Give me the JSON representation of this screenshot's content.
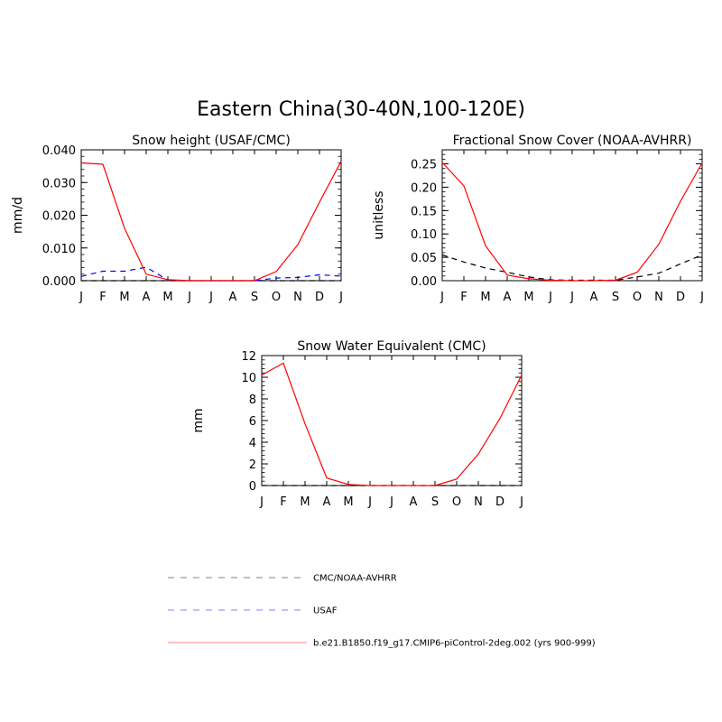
{
  "figure": {
    "title": "Eastern China(30-40N,100-120E)"
  },
  "months": [
    "J",
    "F",
    "M",
    "A",
    "M",
    "J",
    "J",
    "A",
    "S",
    "O",
    "N",
    "D",
    "J"
  ],
  "legend": [
    {
      "label": "CMC/NOAA-AVHRR",
      "color": "#000000",
      "style": "dashed"
    },
    {
      "label": "USAF",
      "color": "#0000ff",
      "style": "dashed"
    },
    {
      "label": "b.e21.B1850.f19_g17.CMIP6-piControl-2deg.002 (yrs 900-999)",
      "color": "#ff0000",
      "style": "solid"
    }
  ],
  "chart_data": [
    {
      "type": "line",
      "title": "Snow height (USAF/CMC)",
      "xlabel": "",
      "ylabel": "mm/d",
      "ylim": [
        0,
        0.04
      ],
      "yticks": [
        "0.000",
        "0.010",
        "0.020",
        "0.030",
        "0.040"
      ],
      "x": [
        "J",
        "F",
        "M",
        "A",
        "M",
        "J",
        "J",
        "A",
        "S",
        "O",
        "N",
        "D",
        "J"
      ],
      "series": [
        {
          "name": "CMC/NOAA-AVHRR",
          "color": "#000000",
          "dash": true,
          "values": [
            0,
            0,
            0,
            0,
            0,
            0,
            0,
            0,
            0,
            0,
            0,
            0,
            0
          ]
        },
        {
          "name": "USAF",
          "color": "#0000ff",
          "dash": true,
          "values": [
            0.0013,
            0.0029,
            0.0029,
            0.0041,
            0.0002,
            0,
            0,
            0,
            0,
            0.0008,
            0.001,
            0.0018,
            0.0014
          ]
        },
        {
          "name": "b.e21.B1850.f19_g17.CMIP6-piControl-2deg.002 (yrs 900-999)",
          "color": "#ff0000",
          "dash": false,
          "values": [
            0.036,
            0.0356,
            0.016,
            0.002,
            0.0003,
            0,
            0,
            0,
            0,
            0.0028,
            0.011,
            0.024,
            0.0365
          ]
        }
      ]
    },
    {
      "type": "line",
      "title": "Fractional Snow Cover (NOAA-AVHRR)",
      "xlabel": "",
      "ylabel": "unitless",
      "ylim": [
        0,
        0.28
      ],
      "yticks": [
        "0.00",
        "0.05",
        "0.10",
        "0.15",
        "0.20",
        "0.25"
      ],
      "x": [
        "J",
        "F",
        "M",
        "A",
        "M",
        "J",
        "J",
        "A",
        "S",
        "O",
        "N",
        "D",
        "J"
      ],
      "series": [
        {
          "name": "CMC/NOAA-AVHRR",
          "color": "#000000",
          "dash": true,
          "values": [
            0.055,
            0.04,
            0.027,
            0.018,
            0.008,
            0.002,
            0.001,
            0.001,
            0.001,
            0.008,
            0.016,
            0.036,
            0.055
          ]
        },
        {
          "name": "b.e21.B1850.f19_g17.CMIP6-piControl-2deg.002 (yrs 900-999)",
          "color": "#ff0000",
          "dash": false,
          "values": [
            0.253,
            0.203,
            0.075,
            0.012,
            0.004,
            0.001,
            0,
            0,
            0.001,
            0.018,
            0.078,
            0.17,
            0.252
          ]
        }
      ]
    },
    {
      "type": "line",
      "title": "Snow Water Equivalent (CMC)",
      "xlabel": "",
      "ylabel": "mm",
      "ylim": [
        0,
        12
      ],
      "yticks": [
        "0",
        "2",
        "4",
        "6",
        "8",
        "10",
        "12"
      ],
      "x": [
        "J",
        "F",
        "M",
        "A",
        "M",
        "J",
        "J",
        "A",
        "S",
        "O",
        "N",
        "D",
        "J"
      ],
      "series": [
        {
          "name": "CMC/NOAA-AVHRR",
          "color": "#000000",
          "dash": true,
          "values": [
            0,
            0,
            0,
            0,
            0,
            0,
            0,
            0,
            0,
            0,
            0,
            0,
            0
          ]
        },
        {
          "name": "b.e21.B1850.f19_g17.CMIP6-piControl-2deg.002 (yrs 900-999)",
          "color": "#ff0000",
          "dash": false,
          "values": [
            10.2,
            11.3,
            5.7,
            0.7,
            0.1,
            0,
            0,
            0,
            0,
            0.6,
            2.9,
            6.2,
            10.2
          ]
        }
      ]
    }
  ]
}
